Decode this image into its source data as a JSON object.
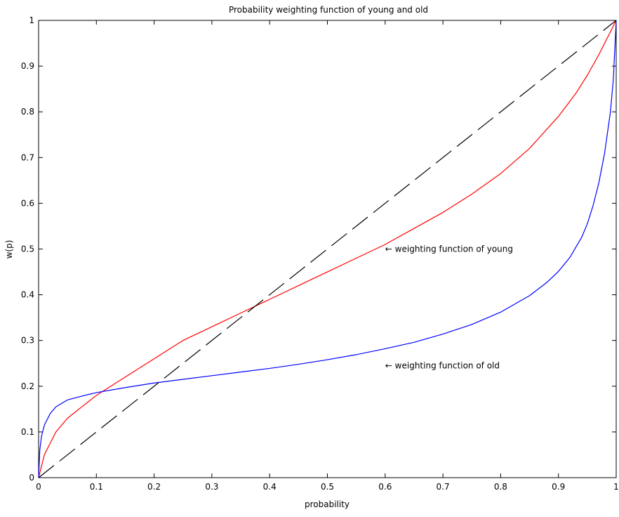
{
  "chart_data": {
    "type": "line",
    "title": "Probability weighting function of young and old",
    "xlabel": "probability",
    "ylabel": "w(p)",
    "xlim": [
      0,
      1
    ],
    "ylim": [
      0,
      1
    ],
    "xticks": [
      "0",
      "0.1",
      "0.2",
      "0.3",
      "0.4",
      "0.5",
      "0.6",
      "0.7",
      "0.8",
      "0.9",
      "1"
    ],
    "yticks": [
      "0",
      "0.1",
      "0.2",
      "0.3",
      "0.4",
      "0.5",
      "0.6",
      "0.7",
      "0.8",
      "0.9",
      "1"
    ],
    "grid": false,
    "legend": "none",
    "series": [
      {
        "id": "young",
        "color": "#ff0000",
        "style": "solid",
        "x": [
          0,
          0.01,
          0.03,
          0.05,
          0.08,
          0.1,
          0.15,
          0.2,
          0.25,
          0.3,
          0.35,
          0.4,
          0.45,
          0.5,
          0.55,
          0.6,
          0.65,
          0.7,
          0.75,
          0.8,
          0.85,
          0.9,
          0.93,
          0.95,
          0.97,
          0.99,
          1
        ],
        "y": [
          0,
          0.05,
          0.1,
          0.13,
          0.16,
          0.18,
          0.22,
          0.26,
          0.3,
          0.33,
          0.36,
          0.39,
          0.42,
          0.45,
          0.48,
          0.51,
          0.545,
          0.58,
          0.62,
          0.665,
          0.72,
          0.79,
          0.84,
          0.88,
          0.925,
          0.975,
          1
        ]
      },
      {
        "id": "old",
        "color": "#0000ff",
        "style": "solid",
        "x": [
          0,
          0.002,
          0.005,
          0.01,
          0.02,
          0.03,
          0.05,
          0.08,
          0.1,
          0.15,
          0.2,
          0.25,
          0.3,
          0.35,
          0.4,
          0.45,
          0.5,
          0.55,
          0.6,
          0.65,
          0.7,
          0.75,
          0.8,
          0.85,
          0.88,
          0.9,
          0.92,
          0.94,
          0.95,
          0.96,
          0.97,
          0.98,
          0.99,
          0.995,
          1
        ],
        "y": [
          0,
          0.06,
          0.09,
          0.115,
          0.14,
          0.155,
          0.17,
          0.18,
          0.186,
          0.197,
          0.207,
          0.215,
          0.223,
          0.231,
          0.239,
          0.248,
          0.258,
          0.269,
          0.282,
          0.296,
          0.314,
          0.335,
          0.362,
          0.398,
          0.427,
          0.451,
          0.482,
          0.525,
          0.555,
          0.595,
          0.645,
          0.71,
          0.8,
          0.87,
          1
        ]
      },
      {
        "id": "diagonal",
        "color": "#000000",
        "style": "dashed",
        "x": [
          0,
          1
        ],
        "y": [
          0,
          1
        ]
      }
    ],
    "annotations": [
      {
        "text": "← weighting function of young",
        "x": 0.6,
        "y": 0.5
      },
      {
        "text": "← weighting function of old",
        "x": 0.6,
        "y": 0.245
      }
    ]
  }
}
